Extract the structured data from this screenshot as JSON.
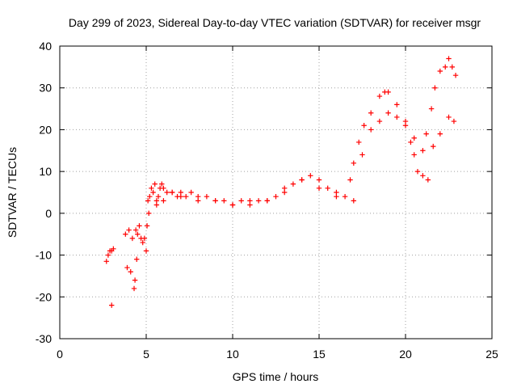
{
  "chart_data": {
    "type": "scatter",
    "title": "Day 299 of 2023, Sidereal Day-to-day VTEC variation (SDTVAR) for receiver msgr",
    "xlabel": "GPS time / hours",
    "ylabel": "SDTVAR / TECUs",
    "xlim": [
      0,
      25
    ],
    "ylim": [
      -30,
      40
    ],
    "xticks": [
      "0",
      "5",
      "10",
      "15",
      "20",
      "25"
    ],
    "yticks": [
      "-30",
      "-20",
      "-10",
      "0",
      "10",
      "20",
      "30",
      "40"
    ],
    "grid": true,
    "marker": "+",
    "color": "#ff0000",
    "series": [
      {
        "name": "SDTVAR",
        "x": [
          2.7,
          2.8,
          2.9,
          3.0,
          3.1,
          3.0,
          3.8,
          3.9,
          4.0,
          4.1,
          4.2,
          4.3,
          4.35,
          4.4,
          4.45,
          4.5,
          4.6,
          4.7,
          4.8,
          4.9,
          5.0,
          5.05,
          5.1,
          5.15,
          5.2,
          5.3,
          5.4,
          5.5,
          5.6,
          5.7,
          5.8,
          5.9,
          6.0,
          6.2,
          6.5,
          6.8,
          7.0,
          7.3,
          7.6,
          8.0,
          8.5,
          9.0,
          9.5,
          10.0,
          10.5,
          11.0,
          11.5,
          12.0,
          12.5,
          13.0,
          13.5,
          14.0,
          14.5,
          15.0,
          15.5,
          16.0,
          16.5,
          16.8,
          17.0,
          17.3,
          17.6,
          18.0,
          18.5,
          18.8,
          19.0,
          19.5,
          20.0,
          20.3,
          20.5,
          21.0,
          21.2,
          21.5,
          21.7,
          22.0,
          22.3,
          22.5,
          22.7,
          22.9,
          20.7,
          21.0,
          21.3,
          21.6,
          22.0,
          22.5,
          22.8,
          5.6,
          6.0,
          6.5,
          7.0,
          8.0,
          9.0,
          10.0,
          11.0,
          12.0,
          13.0,
          14.0,
          15.0,
          16.0,
          17.0,
          17.5,
          18.0,
          18.5,
          19.0,
          19.5,
          20.0,
          20.5
        ],
        "y": [
          -11.5,
          -10,
          -9,
          -9,
          -8.5,
          -22,
          -5,
          -13,
          -4,
          -14,
          -6,
          -18,
          -16,
          -4,
          -11,
          -5,
          -3,
          -6,
          -7,
          -6,
          -9,
          -3,
          3,
          0,
          4,
          6,
          5,
          7,
          3,
          4,
          6,
          7,
          6,
          5,
          5,
          4,
          5,
          4,
          5,
          4,
          4,
          3,
          3,
          2,
          3,
          3,
          3,
          3,
          4,
          6,
          7,
          8,
          9,
          8,
          6,
          5,
          4,
          8,
          12,
          17,
          21,
          24,
          28,
          29,
          29,
          26,
          22,
          17,
          14,
          15,
          19,
          25,
          30,
          34,
          35,
          37,
          35,
          33,
          10,
          9,
          8,
          16,
          19,
          23,
          22,
          2,
          3,
          5,
          4,
          3,
          3,
          2,
          2,
          3,
          5,
          8,
          6,
          4,
          3,
          14,
          20,
          22,
          24,
          23,
          21,
          18
        ]
      }
    ]
  }
}
